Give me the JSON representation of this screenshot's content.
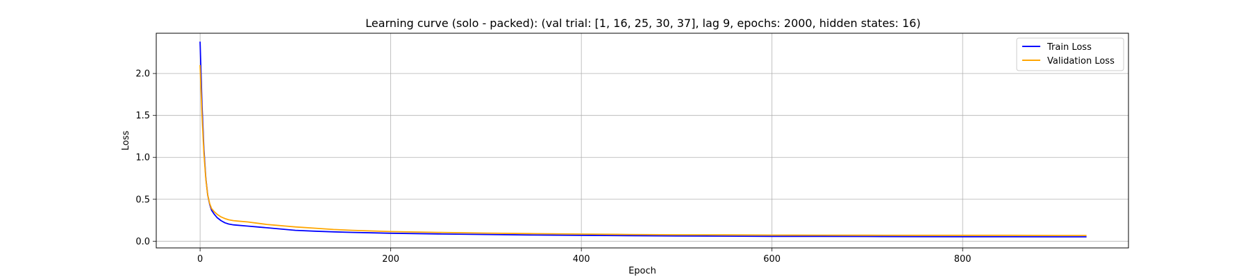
{
  "chart_data": {
    "type": "line",
    "title": "Learning curve (solo - packed): (val trial: [1, 16, 25, 30, 37], lag 9, epochs: 2000, hidden states: 16)",
    "xlabel": "Epoch",
    "ylabel": "Loss",
    "xlim": [
      -46,
      974
    ],
    "ylim": [
      -0.08,
      2.48
    ],
    "xticks": [
      0,
      200,
      400,
      600,
      800
    ],
    "yticks": [
      0.0,
      0.5,
      1.0,
      1.5,
      2.0
    ],
    "xtick_labels": [
      "0",
      "200",
      "400",
      "600",
      "800"
    ],
    "ytick_labels": [
      "0.0",
      "0.5",
      "1.0",
      "1.5",
      "2.0"
    ],
    "grid": true,
    "legend_position": "top-right",
    "series": [
      {
        "name": "Train Loss",
        "color": "#0000ff",
        "x": [
          0,
          2,
          4,
          6,
          8,
          10,
          12,
          15,
          18,
          22,
          26,
          30,
          35,
          40,
          50,
          60,
          70,
          80,
          90,
          100,
          120,
          140,
          160,
          180,
          200,
          250,
          300,
          350,
          400,
          450,
          500,
          550,
          600,
          650,
          700,
          750,
          800,
          850,
          900,
          930
        ],
        "values": [
          2.38,
          1.62,
          1.1,
          0.75,
          0.55,
          0.44,
          0.37,
          0.32,
          0.28,
          0.245,
          0.22,
          0.205,
          0.195,
          0.19,
          0.18,
          0.17,
          0.16,
          0.15,
          0.14,
          0.13,
          0.12,
          0.112,
          0.105,
          0.1,
          0.095,
          0.087,
          0.08,
          0.074,
          0.07,
          0.066,
          0.063,
          0.06,
          0.058,
          0.057,
          0.056,
          0.055,
          0.054,
          0.053,
          0.052,
          0.052
        ]
      },
      {
        "name": "Validation Loss",
        "color": "#ffa500",
        "x": [
          0,
          2,
          4,
          6,
          8,
          10,
          12,
          15,
          18,
          22,
          26,
          30,
          35,
          40,
          50,
          60,
          70,
          80,
          90,
          100,
          120,
          140,
          160,
          180,
          200,
          250,
          300,
          350,
          400,
          450,
          500,
          550,
          600,
          650,
          700,
          750,
          800,
          850,
          900,
          930
        ],
        "values": [
          2.1,
          1.5,
          1.05,
          0.74,
          0.55,
          0.45,
          0.39,
          0.35,
          0.32,
          0.29,
          0.27,
          0.255,
          0.245,
          0.24,
          0.23,
          0.215,
          0.2,
          0.19,
          0.18,
          0.17,
          0.155,
          0.14,
          0.13,
          0.122,
          0.115,
          0.105,
          0.097,
          0.09,
          0.085,
          0.08,
          0.077,
          0.075,
          0.073,
          0.072,
          0.071,
          0.07,
          0.07,
          0.07,
          0.069,
          0.069
        ]
      }
    ]
  }
}
